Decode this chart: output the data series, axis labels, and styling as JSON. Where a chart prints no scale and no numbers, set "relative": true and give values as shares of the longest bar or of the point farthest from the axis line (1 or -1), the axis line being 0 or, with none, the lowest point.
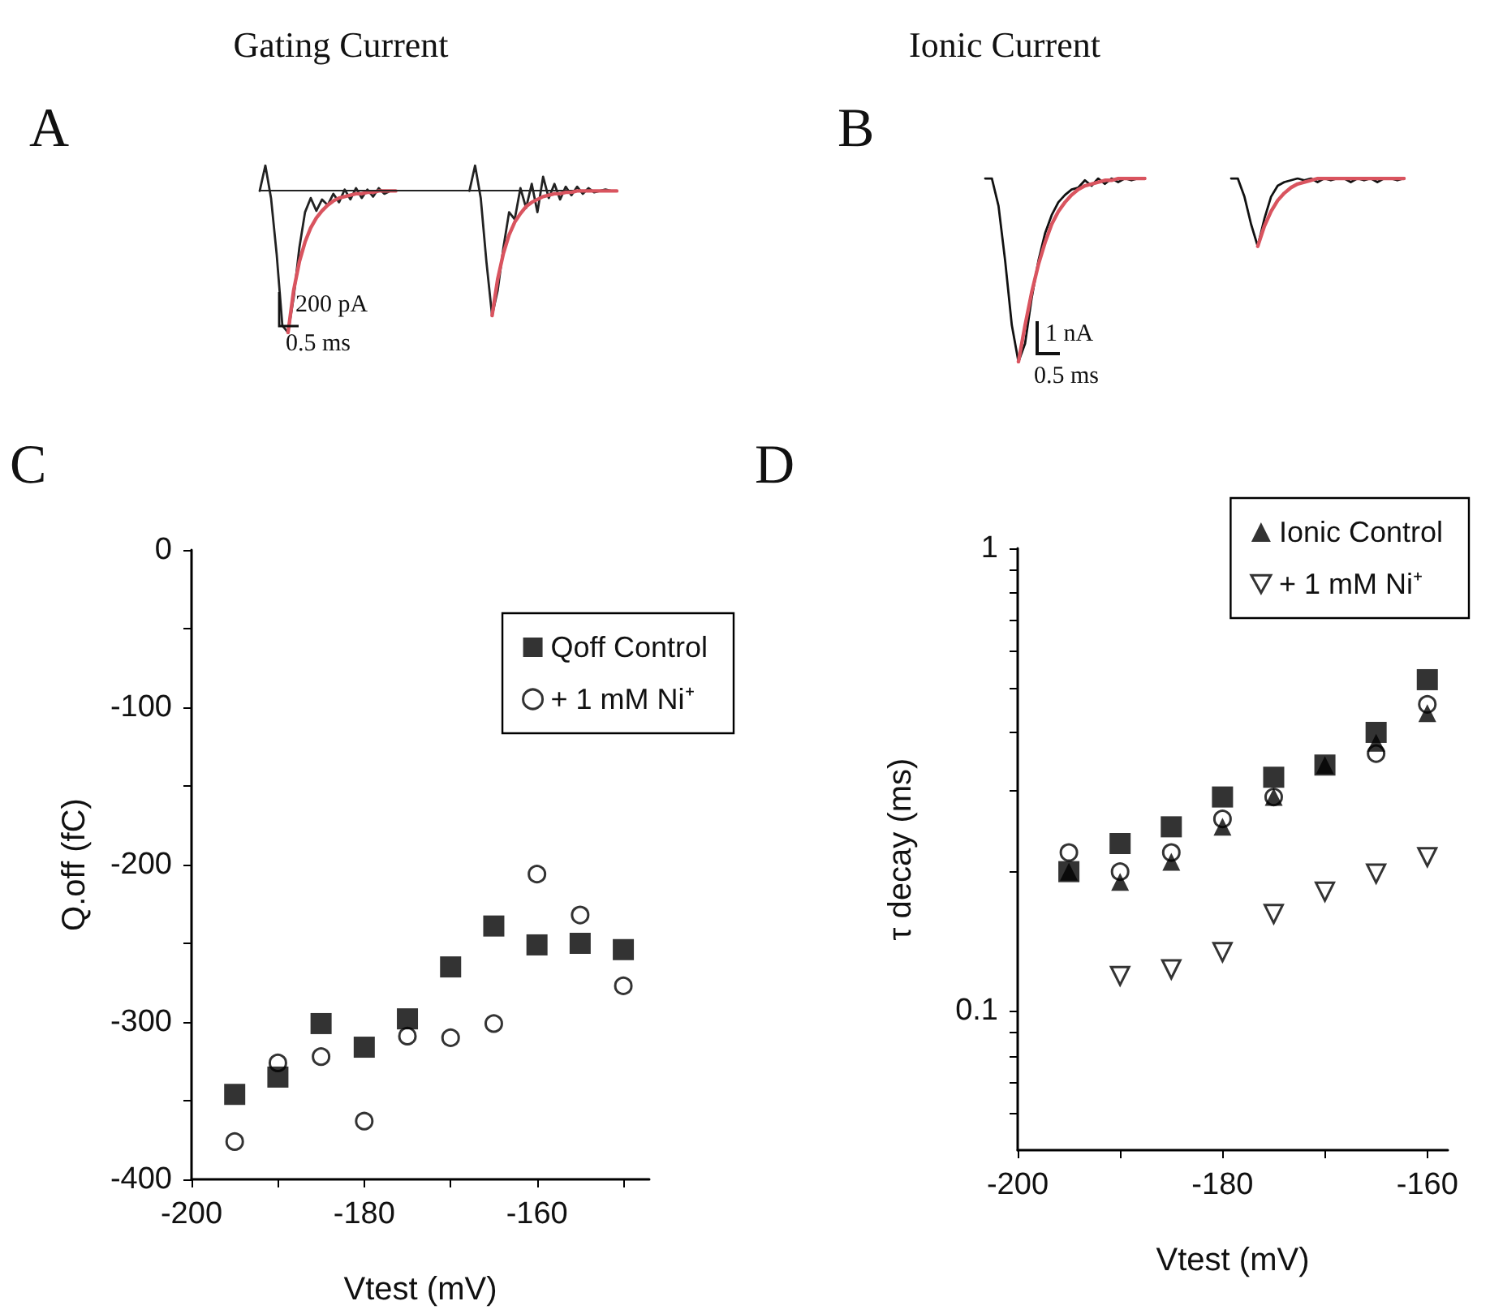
{
  "chart_data": [
    {
      "type": "line",
      "relative": true,
      "title": "Gating Current",
      "annotations": [
        "A",
        "200 pA",
        "0.5 ms"
      ],
      "ref_lines": [
        {
          "axis": "y",
          "value": 0,
          "color": "#222222"
        }
      ],
      "categories": [
        null,
        null,
        null,
        null,
        null,
        null,
        null,
        null,
        null,
        null,
        null,
        null,
        null,
        null,
        null,
        null,
        null,
        null,
        null,
        null,
        null,
        null,
        null,
        null,
        null,
        null,
        null,
        null,
        null,
        null,
        null,
        null,
        null,
        null,
        null,
        null,
        null,
        null,
        null,
        null,
        null,
        null,
        null,
        null,
        null,
        null,
        null,
        null,
        null,
        null,
        null,
        null,
        null,
        null,
        null,
        null,
        null,
        null,
        null,
        null,
        null,
        null,
        null,
        null
      ],
      "series": [
        {
          "color": "#222222",
          "values": [
            0,
            0.18,
            -0.05,
            -0.45,
            -0.95,
            -1,
            -0.75,
            -0.4,
            -0.15,
            -0.05,
            -0.14,
            -0.06,
            -0.1,
            -0.02,
            -0.08,
            0.01,
            -0.06,
            0.02,
            -0.05,
            0.01,
            -0.04,
            0.02,
            -0.02,
            0,
            0,
            null,
            null,
            null,
            null,
            null,
            null,
            null,
            null,
            null,
            null,
            null,
            null,
            null,
            null,
            null,
            null,
            null,
            null,
            null,
            null,
            null,
            null,
            null,
            null,
            null,
            null,
            null,
            null,
            null,
            null,
            null,
            null,
            null,
            null,
            null,
            null,
            null,
            null,
            null
          ]
        },
        {
          "color": "#d9545f",
          "values": [
            null,
            null,
            null,
            null,
            null,
            -1,
            -0.7,
            -0.5,
            -0.36,
            -0.26,
            -0.19,
            -0.14,
            -0.1,
            -0.07,
            -0.05,
            -0.04,
            -0.03,
            -0.02,
            -0.02,
            -0.01,
            -0.01,
            0,
            0,
            0,
            0,
            null,
            null,
            null,
            null,
            null,
            null,
            null,
            null,
            null,
            null,
            null,
            null,
            null,
            null,
            null,
            null,
            null,
            null,
            null,
            null,
            null,
            null,
            null,
            null,
            null,
            null,
            null,
            null,
            null,
            null,
            null,
            null,
            null,
            null,
            null,
            null,
            null,
            null,
            null
          ]
        },
        {
          "color": "#222222",
          "values": [
            null,
            null,
            null,
            null,
            null,
            null,
            null,
            null,
            null,
            null,
            null,
            null,
            null,
            null,
            null,
            null,
            null,
            null,
            null,
            null,
            null,
            null,
            null,
            null,
            null,
            null,
            null,
            null,
            null,
            null,
            null,
            null,
            null,
            null,
            null,
            null,
            null,
            0,
            0.18,
            -0.05,
            -0.5,
            -0.88,
            -0.7,
            -0.4,
            -0.15,
            -0.2,
            0.02,
            -0.12,
            0.05,
            -0.15,
            0.1,
            -0.05,
            0.05,
            -0.06,
            0.03,
            -0.03,
            0.03,
            -0.02,
            0.02,
            -0.01,
            0,
            0.01,
            0,
            0
          ]
        },
        {
          "color": "#d9545f",
          "values": [
            null,
            null,
            null,
            null,
            null,
            null,
            null,
            null,
            null,
            null,
            null,
            null,
            null,
            null,
            null,
            null,
            null,
            null,
            null,
            null,
            null,
            null,
            null,
            null,
            null,
            null,
            null,
            null,
            null,
            null,
            null,
            null,
            null,
            null,
            null,
            null,
            null,
            null,
            null,
            null,
            null,
            -0.88,
            -0.62,
            -0.44,
            -0.31,
            -0.22,
            -0.16,
            -0.11,
            -0.08,
            -0.06,
            -0.04,
            -0.03,
            -0.02,
            -0.02,
            -0.01,
            -0.01,
            0,
            0,
            0,
            0,
            0,
            0,
            0,
            0
          ]
        }
      ]
    },
    {
      "type": "line",
      "relative": true,
      "title": "Ionic Current",
      "annotations": [
        "B",
        "1 nA",
        "0.5 ms"
      ],
      "categories": [
        null,
        null,
        null,
        null,
        null,
        null,
        null,
        null,
        null,
        null,
        null,
        null,
        null,
        null,
        null,
        null,
        null,
        null,
        null,
        null,
        null,
        null,
        null,
        null,
        null,
        null,
        null,
        null,
        null,
        null,
        null,
        null,
        null,
        null,
        null,
        null,
        null,
        null,
        null,
        null,
        null,
        null,
        null,
        null,
        null,
        null,
        null,
        null,
        null,
        null,
        null,
        null,
        null,
        null,
        null,
        null,
        null,
        null,
        null,
        null,
        null,
        null,
        null,
        null
      ],
      "series": [
        {
          "color": "#111111",
          "values": [
            1,
            1,
            0.85,
            0.55,
            0.2,
            0,
            0.1,
            0.35,
            0.55,
            0.7,
            0.8,
            0.87,
            0.91,
            0.94,
            0.95,
            0.99,
            0.96,
            1,
            0.97,
            1,
            0.98,
            1,
            0.99,
            1,
            1,
            null,
            null,
            null,
            null,
            null,
            null,
            null,
            null,
            null,
            null,
            null,
            null,
            null,
            null,
            null,
            null,
            null,
            null,
            null,
            null,
            null,
            null,
            null,
            null,
            null,
            null,
            null,
            null,
            null,
            null,
            null,
            null,
            null,
            null,
            null,
            null,
            null,
            null,
            null
          ]
        },
        {
          "color": "#d9545f",
          "values": [
            null,
            null,
            null,
            null,
            null,
            0,
            0.2,
            0.38,
            0.53,
            0.65,
            0.75,
            0.82,
            0.87,
            0.91,
            0.94,
            0.96,
            0.97,
            0.98,
            0.99,
            0.99,
            1,
            1,
            1,
            1,
            1,
            null,
            null,
            null,
            null,
            null,
            null,
            null,
            null,
            null,
            null,
            null,
            null,
            null,
            null,
            null,
            null,
            null,
            null,
            null,
            null,
            null,
            null,
            null,
            null,
            null,
            null,
            null,
            null,
            null,
            null,
            null,
            null,
            null,
            null,
            null,
            null,
            null,
            null,
            null
          ]
        },
        {
          "color": "#111111",
          "values": [
            null,
            null,
            null,
            null,
            null,
            null,
            null,
            null,
            null,
            null,
            null,
            null,
            null,
            null,
            null,
            null,
            null,
            null,
            null,
            null,
            null,
            null,
            null,
            null,
            null,
            null,
            null,
            null,
            null,
            null,
            null,
            null,
            null,
            null,
            null,
            null,
            null,
            1,
            1,
            0.9,
            0.75,
            0.63,
            0.78,
            0.9,
            0.96,
            0.98,
            0.99,
            1,
            0.99,
            1,
            0.98,
            1,
            0.99,
            1,
            1,
            0.98,
            1,
            0.99,
            1,
            0.98,
            1,
            1,
            0.99,
            1
          ]
        },
        {
          "color": "#d9545f",
          "values": [
            null,
            null,
            null,
            null,
            null,
            null,
            null,
            null,
            null,
            null,
            null,
            null,
            null,
            null,
            null,
            null,
            null,
            null,
            null,
            null,
            null,
            null,
            null,
            null,
            null,
            null,
            null,
            null,
            null,
            null,
            null,
            null,
            null,
            null,
            null,
            null,
            null,
            null,
            null,
            null,
            null,
            0.63,
            0.74,
            0.82,
            0.88,
            0.92,
            0.95,
            0.97,
            0.98,
            0.99,
            1,
            1,
            1,
            1,
            1,
            1,
            1,
            1,
            1,
            1,
            1,
            1,
            1,
            1
          ]
        }
      ]
    },
    {
      "type": "scatter",
      "xlabel": "Vtest (mV)",
      "ylabel": "Q.off (fC)",
      "annotations": [
        "C"
      ],
      "legend": "top right",
      "grid": false,
      "xlim": [
        -200,
        -147
      ],
      "xticks": [
        -200,
        {
          "value": -190,
          "label": null
        },
        -180,
        {
          "value": -170,
          "label": null
        },
        -160,
        {
          "value": -150,
          "label": null
        }
      ],
      "ylim": [
        -400,
        0
      ],
      "yticks": [
        -400,
        {
          "value": -350,
          "label": null
        },
        -300,
        {
          "value": -250,
          "label": null
        },
        -200,
        {
          "value": -150,
          "label": null
        },
        -100,
        {
          "value": -50,
          "label": null
        },
        0
      ],
      "series": [
        {
          "name": "Qoff Control",
          "color": "#000000",
          "marker": "square",
          "x": [
            -195,
            -190,
            -185,
            -180,
            -175,
            -170,
            -165,
            -160,
            -155,
            -150
          ],
          "values": [
            -346,
            -335,
            -301,
            -316,
            -298,
            -265,
            -239,
            -251,
            -250,
            -254
          ]
        },
        {
          "name": "+ 1 mM Ni⁺",
          "color": "#000000",
          "marker": "circle",
          "x": [
            -195,
            -190,
            -185,
            -180,
            -175,
            -170,
            -165,
            -160,
            -155,
            -150
          ],
          "values": [
            -376,
            -326,
            -322,
            -363,
            -309,
            -310,
            -301,
            -206,
            -232,
            -277
          ]
        }
      ]
    },
    {
      "type": "scatter",
      "xlabel": "Vtest (mV)",
      "ylabel": "τ decay (ms)",
      "annotations": [
        "D"
      ],
      "legend": "top right",
      "grid": false,
      "log": "y",
      "xlim": [
        -200,
        -158
      ],
      "xticks": [
        -200,
        {
          "value": -190,
          "label": null
        },
        -180,
        {
          "value": -170,
          "label": null
        },
        -160
      ],
      "ylim": [
        0.05,
        1
      ],
      "yticks": [
        {
          "value": 0.06,
          "label": null
        },
        {
          "value": 0.07,
          "label": null
        },
        {
          "value": 0.08,
          "label": null
        },
        {
          "value": 0.09,
          "label": null
        },
        0.1,
        {
          "value": 0.2,
          "label": null
        },
        {
          "value": 0.3,
          "label": null
        },
        {
          "value": 0.4,
          "label": null
        },
        {
          "value": 0.5,
          "label": null
        },
        {
          "value": 0.6,
          "label": null
        },
        {
          "value": 0.7,
          "label": null
        },
        {
          "value": 0.8,
          "label": null
        },
        {
          "value": 0.9,
          "label": null
        },
        1
      ],
      "series": [
        {
          "color": "#000000",
          "marker": "square",
          "x": [
            -195,
            -190,
            -185,
            -180,
            -175,
            -170,
            -165,
            -160
          ],
          "values": [
            0.2,
            0.23,
            0.25,
            0.29,
            0.32,
            0.34,
            0.4,
            0.52
          ]
        },
        {
          "color": "#000000",
          "marker": "circle",
          "x": [
            -195,
            -190,
            -185,
            -180,
            -175,
            -170,
            -165,
            -160
          ],
          "values": [
            0.22,
            0.2,
            0.22,
            0.26,
            0.29,
            null,
            0.36,
            0.46
          ]
        },
        {
          "name": "Ionic Control",
          "color": "#000000",
          "marker": "triangle",
          "x": [
            -195,
            -190,
            -185,
            -180,
            -175,
            -170,
            -165,
            -160
          ],
          "values": [
            0.2,
            0.19,
            0.21,
            0.25,
            0.29,
            0.34,
            0.38,
            0.44
          ]
        },
        {
          "name": "+ 1 mM Ni⁺",
          "color": "#000000",
          "marker": "triangle-down",
          "x": [
            -190,
            -185,
            -180,
            -175,
            -170,
            -165,
            -160
          ],
          "values": [
            0.119,
            0.123,
            0.134,
            0.162,
            0.181,
            0.198,
            0.215
          ]
        }
      ]
    }
  ]
}
